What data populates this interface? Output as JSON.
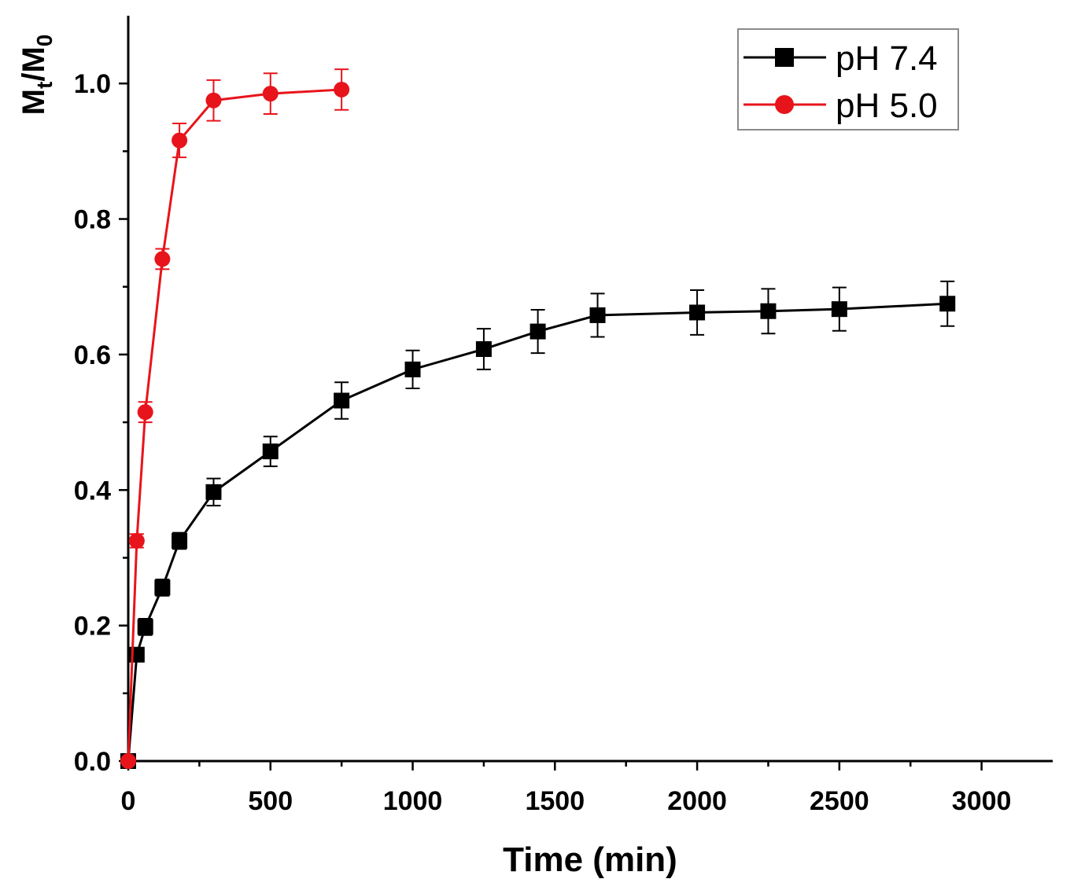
{
  "chart_data": {
    "type": "line",
    "title": "",
    "xlabel": "Time (min)",
    "ylabel": {
      "main": "M",
      "sub1": "t",
      "sep": "/M",
      "sub2": "0"
    },
    "xlim": [
      0,
      3250
    ],
    "ylim": [
      0,
      1.1
    ],
    "xticks": [
      0,
      500,
      1000,
      1500,
      2000,
      2500,
      3000
    ],
    "xtick_labels": [
      "0",
      "500",
      "1000",
      "1500",
      "2000",
      "2500",
      "3000"
    ],
    "yticks": [
      0.0,
      0.2,
      0.4,
      0.6,
      0.8,
      1.0
    ],
    "ytick_labels": [
      "0.0",
      "0.2",
      "0.4",
      "0.6",
      "0.8",
      "1.0"
    ],
    "grid": false,
    "legend_position": "top-right",
    "series": [
      {
        "name": "pH 7.4",
        "color": "#000000",
        "marker": "square",
        "x": [
          0,
          30,
          60,
          120,
          180,
          300,
          500,
          750,
          1000,
          1250,
          1440,
          1650,
          2000,
          2250,
          2500,
          2880
        ],
        "y": [
          0.0,
          0.157,
          0.198,
          0.256,
          0.325,
          0.397,
          0.457,
          0.532,
          0.578,
          0.608,
          0.634,
          0.658,
          0.662,
          0.664,
          0.667,
          0.675
        ],
        "err": [
          0.0,
          0.01,
          0.012,
          0.012,
          0.012,
          0.02,
          0.022,
          0.027,
          0.028,
          0.03,
          0.032,
          0.032,
          0.033,
          0.033,
          0.032,
          0.033
        ]
      },
      {
        "name": "pH 5.0",
        "color": "#e8141b",
        "marker": "circle",
        "x": [
          0,
          30,
          60,
          120,
          180,
          300,
          500,
          750
        ],
        "y": [
          0.0,
          0.325,
          0.515,
          0.741,
          0.916,
          0.975,
          0.985,
          0.991
        ],
        "err": [
          0.0,
          0.01,
          0.015,
          0.015,
          0.025,
          0.03,
          0.03,
          0.03
        ]
      }
    ]
  }
}
